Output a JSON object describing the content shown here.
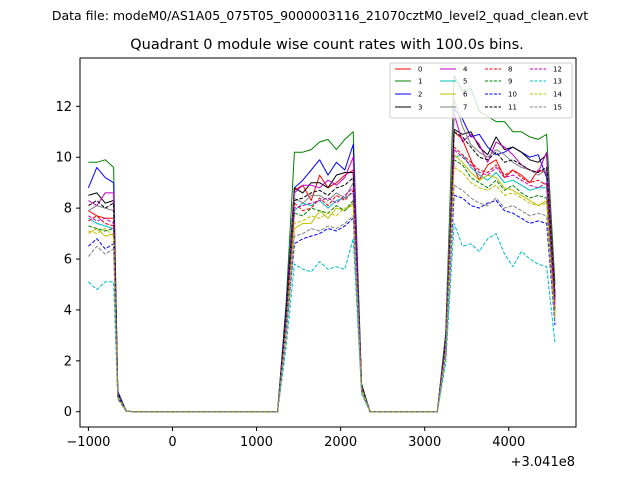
{
  "chart_data": {
    "type": "line",
    "suptitle": "Data file: modeM0/AS1A05_075T05_9000003116_21070cztM0_level2_quad_clean.evt",
    "title": "Quadrant 0 module wise count rates with 100.0s bins.",
    "xlabel": "",
    "ylabel": "",
    "x_offset_label": "+3.041e8",
    "xlim": [
      -1100,
      4800
    ],
    "ylim": [
      -0.6,
      13.9
    ],
    "xticks": [
      -1000,
      0,
      1000,
      2000,
      3000,
      4000
    ],
    "xtick_labels": [
      "−1000",
      "0",
      "1000",
      "2000",
      "3000",
      "4000"
    ],
    "yticks": [
      0,
      2,
      4,
      6,
      8,
      10,
      12
    ],
    "ytick_labels": [
      "0",
      "2",
      "4",
      "6",
      "8",
      "10",
      "12"
    ],
    "legend_position": "upper-right",
    "legend_columns": 4,
    "x": [
      -1000,
      -900,
      -800,
      -700,
      -650,
      -550,
      -450,
      -350,
      -250,
      -150,
      -50,
      50,
      150,
      250,
      350,
      450,
      550,
      650,
      750,
      850,
      950,
      1050,
      1150,
      1250,
      1350,
      1450,
      1550,
      1650,
      1750,
      1850,
      1950,
      2050,
      2150,
      2250,
      2350,
      2450,
      2550,
      2650,
      2750,
      2850,
      2950,
      3050,
      3150,
      3250,
      3350,
      3450,
      3550,
      3650,
      3750,
      3850,
      3950,
      4050,
      4150,
      4250,
      4350,
      4450,
      4550
    ],
    "series": [
      {
        "name": "0",
        "color": "#ff0000",
        "dash": "solid",
        "values": [
          7.9,
          7.7,
          7.6,
          7.6,
          0.7,
          0.02,
          0,
          0,
          0,
          0,
          0,
          0,
          0,
          0,
          0,
          0,
          0,
          0,
          0,
          0,
          0,
          0,
          0,
          0,
          3.6,
          8.7,
          8.9,
          8.3,
          9.3,
          8.8,
          9.0,
          9.3,
          9.5,
          1.0,
          0,
          0,
          0,
          0,
          0,
          0,
          0,
          0,
          0,
          2.7,
          11.0,
          10.7,
          9.9,
          9.1,
          9.7,
          9.9,
          9.2,
          9.5,
          9.3,
          9.0,
          9.5,
          9.4,
          4.3
        ]
      },
      {
        "name": "1",
        "color": "#008000",
        "dash": "solid",
        "values": [
          9.8,
          9.8,
          9.9,
          9.6,
          0.8,
          0.02,
          0,
          0,
          0,
          0,
          0,
          0,
          0,
          0,
          0,
          0,
          0,
          0,
          0,
          0,
          0,
          0,
          0,
          0,
          4.2,
          10.2,
          10.2,
          10.3,
          10.6,
          10.7,
          10.3,
          10.7,
          11.0,
          1.1,
          0,
          0,
          0,
          0,
          0,
          0,
          0,
          0,
          0,
          3.1,
          13.2,
          12.6,
          12.7,
          11.8,
          11.6,
          11.4,
          11.4,
          11.0,
          11.0,
          10.8,
          10.7,
          10.9,
          5.0
        ]
      },
      {
        "name": "2",
        "color": "#0000ff",
        "dash": "solid",
        "values": [
          8.8,
          9.6,
          9.2,
          9.0,
          0.8,
          0.02,
          0,
          0,
          0,
          0,
          0,
          0,
          0,
          0,
          0,
          0,
          0,
          0,
          0,
          0,
          0,
          0,
          0,
          0,
          4.0,
          8.8,
          9.1,
          9.5,
          9.9,
          9.3,
          9.8,
          9.5,
          10.5,
          1.0,
          0,
          0,
          0,
          0,
          0,
          0,
          0,
          0,
          0,
          2.9,
          11.9,
          11.5,
          10.8,
          10.9,
          10.4,
          10.1,
          10.2,
          10.4,
          10.2,
          10.0,
          10.1,
          9.2,
          4.6
        ]
      },
      {
        "name": "3",
        "color": "#000000",
        "dash": "solid",
        "values": [
          8.5,
          8.6,
          8.2,
          8.3,
          0.7,
          0.02,
          0,
          0,
          0,
          0,
          0,
          0,
          0,
          0,
          0,
          0,
          0,
          0,
          0,
          0,
          0,
          0,
          0,
          0,
          3.8,
          8.8,
          8.6,
          9.0,
          9.0,
          8.8,
          9.3,
          9.4,
          9.4,
          1.0,
          0,
          0,
          0,
          0,
          0,
          0,
          0,
          0,
          0,
          2.8,
          11.1,
          10.9,
          11.0,
          10.4,
          10.1,
          10.8,
          10.3,
          10.4,
          10.2,
          9.9,
          9.8,
          10.1,
          4.6
        ]
      },
      {
        "name": "4",
        "color": "#bf00bf",
        "dash": "solid",
        "values": [
          8.3,
          8.1,
          8.6,
          8.6,
          0.7,
          0.02,
          0,
          0,
          0,
          0,
          0,
          0,
          0,
          0,
          0,
          0,
          0,
          0,
          0,
          0,
          0,
          0,
          0,
          0,
          3.7,
          8.6,
          8.9,
          8.9,
          8.8,
          9.1,
          8.9,
          9.2,
          10.0,
          1.0,
          0,
          0,
          0,
          0,
          0,
          0,
          0,
          0,
          0,
          2.8,
          11.7,
          10.6,
          10.9,
          10.5,
          9.8,
          10.6,
          10.4,
          10.1,
          9.7,
          9.5,
          9.4,
          10.2,
          4.5
        ]
      },
      {
        "name": "5",
        "color": "#00bfbf",
        "dash": "solid",
        "values": [
          7.6,
          7.4,
          7.3,
          7.2,
          0.6,
          0.02,
          0,
          0,
          0,
          0,
          0,
          0,
          0,
          0,
          0,
          0,
          0,
          0,
          0,
          0,
          0,
          0,
          0,
          0,
          3.3,
          7.9,
          8.2,
          8.1,
          8.3,
          8.0,
          8.3,
          8.4,
          8.6,
          0.9,
          0,
          0,
          0,
          0,
          0,
          0,
          0,
          0,
          0,
          2.5,
          10.0,
          10.1,
          9.6,
          9.3,
          9.1,
          9.4,
          9.0,
          9.1,
          8.9,
          8.7,
          8.8,
          8.8,
          4.0
        ]
      },
      {
        "name": "6",
        "color": "#bfbf00",
        "dash": "solid",
        "values": [
          7.0,
          7.2,
          6.9,
          7.0,
          0.6,
          0.02,
          0,
          0,
          0,
          0,
          0,
          0,
          0,
          0,
          0,
          0,
          0,
          0,
          0,
          0,
          0,
          0,
          0,
          0,
          3.2,
          7.2,
          7.4,
          7.4,
          7.9,
          7.6,
          8.0,
          7.9,
          8.2,
          0.9,
          0,
          0,
          0,
          0,
          0,
          0,
          0,
          0,
          0,
          2.4,
          10.1,
          9.8,
          9.4,
          9.1,
          9.3,
          9.2,
          8.8,
          8.7,
          8.5,
          8.3,
          8.1,
          8.3,
          3.8
        ]
      },
      {
        "name": "7",
        "color": "#808080",
        "dash": "solid",
        "values": [
          7.9,
          8.1,
          8.0,
          7.9,
          0.7,
          0.02,
          0,
          0,
          0,
          0,
          0,
          0,
          0,
          0,
          0,
          0,
          0,
          0,
          0,
          0,
          0,
          0,
          0,
          0,
          3.6,
          8.4,
          8.2,
          8.5,
          8.5,
          8.3,
          8.6,
          8.4,
          9.0,
          0.9,
          0,
          0,
          0,
          0,
          0,
          0,
          0,
          0,
          0,
          2.7,
          12.3,
          11.2,
          10.5,
          10.2,
          10.0,
          10.3,
          10.1,
          9.8,
          9.6,
          9.5,
          9.3,
          9.5,
          4.3
        ]
      },
      {
        "name": "8",
        "color": "#ff0000",
        "dash": "dashed",
        "values": [
          7.5,
          7.7,
          7.4,
          7.3,
          0.6,
          0.02,
          0,
          0,
          0,
          0,
          0,
          0,
          0,
          0,
          0,
          0,
          0,
          0,
          0,
          0,
          0,
          0,
          0,
          0,
          3.4,
          8.2,
          7.9,
          8.0,
          8.4,
          8.1,
          8.5,
          8.3,
          8.7,
          0.9,
          0,
          0,
          0,
          0,
          0,
          0,
          0,
          0,
          0,
          2.6,
          10.4,
          10.1,
          9.8,
          9.5,
          9.4,
          9.7,
          9.3,
          9.5,
          9.2,
          9.0,
          9.1,
          8.9,
          4.1
        ]
      },
      {
        "name": "9",
        "color": "#008000",
        "dash": "dashed",
        "values": [
          7.3,
          7.2,
          7.1,
          7.2,
          0.6,
          0.02,
          0,
          0,
          0,
          0,
          0,
          0,
          0,
          0,
          0,
          0,
          0,
          0,
          0,
          0,
          0,
          0,
          0,
          0,
          3.3,
          7.8,
          7.7,
          8.0,
          7.9,
          7.8,
          8.1,
          7.9,
          8.3,
          0.9,
          0,
          0,
          0,
          0,
          0,
          0,
          0,
          0,
          0,
          2.5,
          9.9,
          9.7,
          9.2,
          9.0,
          8.8,
          9.1,
          8.7,
          8.9,
          8.6,
          8.4,
          8.5,
          8.4,
          3.9
        ]
      },
      {
        "name": "10",
        "color": "#0000ff",
        "dash": "dashed",
        "values": [
          6.5,
          6.8,
          6.4,
          6.6,
          0.6,
          0.02,
          0,
          0,
          0,
          0,
          0,
          0,
          0,
          0,
          0,
          0,
          0,
          0,
          0,
          0,
          0,
          0,
          0,
          0,
          3.0,
          6.6,
          6.8,
          6.9,
          7.0,
          7.2,
          7.1,
          7.3,
          7.6,
          0.8,
          0,
          0,
          0,
          0,
          0,
          0,
          0,
          0,
          0,
          2.2,
          8.5,
          8.4,
          8.1,
          8.0,
          8.2,
          8.3,
          7.9,
          7.8,
          7.6,
          7.4,
          7.5,
          7.4,
          3.4
        ]
      },
      {
        "name": "11",
        "color": "#000000",
        "dash": "dashed",
        "values": [
          8.1,
          8.3,
          8.0,
          8.2,
          0.7,
          0.02,
          0,
          0,
          0,
          0,
          0,
          0,
          0,
          0,
          0,
          0,
          0,
          0,
          0,
          0,
          0,
          0,
          0,
          0,
          3.7,
          8.3,
          8.4,
          8.6,
          8.7,
          8.5,
          8.8,
          8.9,
          9.2,
          1.0,
          0,
          0,
          0,
          0,
          0,
          0,
          0,
          0,
          0,
          2.7,
          11.0,
          10.8,
          10.4,
          10.0,
          9.9,
          10.2,
          9.8,
          9.9,
          9.7,
          9.5,
          9.4,
          9.6,
          4.4
        ]
      },
      {
        "name": "12",
        "color": "#bf00bf",
        "dash": "dashed",
        "values": [
          7.7,
          7.5,
          7.6,
          7.4,
          0.6,
          0.02,
          0,
          0,
          0,
          0,
          0,
          0,
          0,
          0,
          0,
          0,
          0,
          0,
          0,
          0,
          0,
          0,
          0,
          0,
          3.5,
          8.0,
          8.1,
          8.2,
          8.3,
          8.4,
          8.2,
          8.5,
          8.8,
          0.9,
          0,
          0,
          0,
          0,
          0,
          0,
          0,
          0,
          0,
          2.6,
          10.3,
          10.0,
          9.7,
          9.4,
          9.3,
          9.6,
          9.2,
          9.3,
          9.1,
          8.9,
          8.8,
          9.0,
          4.1
        ]
      },
      {
        "name": "13",
        "color": "#00bfbf",
        "dash": "dashed",
        "values": [
          5.1,
          4.8,
          5.1,
          5.1,
          0.5,
          0.02,
          0,
          0,
          0,
          0,
          0,
          0,
          0,
          0,
          0,
          0,
          0,
          0,
          0,
          0,
          0,
          0,
          0,
          0,
          2.5,
          5.8,
          5.6,
          5.5,
          5.9,
          5.6,
          5.7,
          5.6,
          6.8,
          0.7,
          0,
          0,
          0,
          0,
          0,
          0,
          0,
          0,
          0,
          1.9,
          7.4,
          6.5,
          6.6,
          6.3,
          6.8,
          7.0,
          6.2,
          5.7,
          6.3,
          6.0,
          5.8,
          5.7,
          2.7
        ]
      },
      {
        "name": "14",
        "color": "#bfbf00",
        "dash": "dashed",
        "values": [
          7.1,
          7.0,
          7.2,
          6.9,
          0.6,
          0.02,
          0,
          0,
          0,
          0,
          0,
          0,
          0,
          0,
          0,
          0,
          0,
          0,
          0,
          0,
          0,
          0,
          0,
          0,
          3.2,
          7.4,
          7.5,
          7.7,
          7.6,
          7.8,
          7.7,
          8.0,
          8.1,
          0.9,
          0,
          0,
          0,
          0,
          0,
          0,
          0,
          0,
          0,
          2.4,
          9.6,
          9.4,
          9.0,
          8.8,
          8.7,
          8.9,
          8.5,
          8.6,
          8.4,
          8.2,
          8.1,
          8.2,
          3.7
        ]
      },
      {
        "name": "15",
        "color": "#808080",
        "dash": "dashed",
        "values": [
          6.1,
          6.5,
          6.2,
          6.4,
          0.5,
          0.02,
          0,
          0,
          0,
          0,
          0,
          0,
          0,
          0,
          0,
          0,
          0,
          0,
          0,
          0,
          0,
          0,
          0,
          0,
          2.9,
          6.9,
          7.0,
          7.2,
          7.1,
          7.3,
          7.2,
          7.4,
          7.7,
          0.8,
          0,
          0,
          0,
          0,
          0,
          0,
          0,
          0,
          0,
          2.2,
          8.9,
          8.7,
          8.4,
          8.2,
          8.1,
          8.4,
          8.0,
          8.1,
          7.9,
          7.7,
          7.8,
          7.7,
          3.5
        ]
      }
    ]
  }
}
